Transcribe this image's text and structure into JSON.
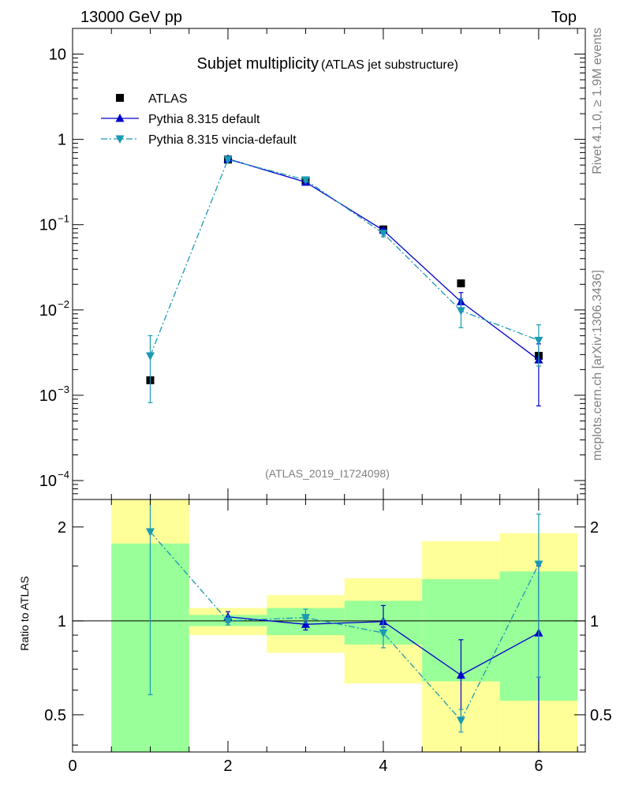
{
  "header": {
    "left": "13000 GeV pp",
    "right": "Top"
  },
  "title": {
    "main": "Subjet multiplicity",
    "sub": "(ATLAS jet substructure)"
  },
  "side_labels": {
    "rivet": "Rivet 4.1.0, ≥ 1.9M events",
    "mcplots": "mcplots.cern.ch [arXiv:1306.3436]"
  },
  "analysis_id": "(ATLAS_2019_I1724098)",
  "colors": {
    "data": "#000000",
    "default": "#0000cc",
    "vincia": "#1a99b3",
    "band_green": "#99ff99",
    "band_yellow": "#ffff99"
  },
  "chart_data": [
    {
      "type": "line",
      "name": "main",
      "title": "Subjet multiplicity",
      "yscale": "log",
      "xlim": [
        0,
        6.6
      ],
      "ylim": [
        6e-05,
        20
      ],
      "y_ticks": [
        {
          "value": 10,
          "label": "10"
        },
        {
          "value": 1,
          "label": "1"
        },
        {
          "value": 0.1,
          "label": "10",
          "exp": "−1"
        },
        {
          "value": 0.01,
          "label": "10",
          "exp": "−2"
        },
        {
          "value": 0.001,
          "label": "10",
          "exp": "−3"
        },
        {
          "value": 0.0001,
          "label": "10",
          "exp": "−4"
        }
      ],
      "legend": {
        "position": "top-left",
        "entries": [
          {
            "key": "data",
            "label": "ATLAS"
          },
          {
            "key": "default",
            "label": "Pythia 8.315 default"
          },
          {
            "key": "vincia",
            "label": "Pythia 8.315 vincia-default"
          }
        ]
      },
      "series": [
        {
          "key": "data",
          "name": "ATLAS",
          "marker": "square",
          "x": [
            1,
            2,
            3,
            4,
            5,
            6
          ],
          "y": [
            0.0015,
            0.58,
            0.33,
            0.088,
            0.0205,
            0.0029
          ]
        },
        {
          "key": "default",
          "name": "Pythia 8.315 default",
          "marker": "triangle-up",
          "x": [
            1,
            2,
            3,
            4,
            5,
            6
          ],
          "y": [
            null,
            0.59,
            0.315,
            0.086,
            0.0125,
            0.0026
          ],
          "err_lo": [
            null,
            0.57,
            0.305,
            0.082,
            0.01,
            0.00075
          ],
          "err_hi": [
            null,
            0.61,
            0.325,
            0.09,
            0.016,
            0.004
          ]
        },
        {
          "key": "vincia",
          "name": "Pythia 8.315 vincia-default",
          "marker": "triangle-down",
          "x": [
            1,
            2,
            3,
            4,
            5,
            6
          ],
          "y": [
            0.0029,
            0.58,
            0.335,
            0.079,
            0.0098,
            0.0044
          ],
          "err_lo": [
            0.00082,
            0.56,
            0.32,
            0.072,
            0.0062,
            0.0022
          ],
          "err_hi": [
            0.005,
            0.6,
            0.35,
            0.086,
            0.0135,
            0.0067
          ]
        }
      ]
    },
    {
      "type": "line",
      "name": "ratio",
      "ylabel": "Ratio to ATLAS",
      "yscale": "log",
      "xlim": [
        0,
        6.6
      ],
      "ylim": [
        0.38,
        2.45
      ],
      "x_ticks": [
        0,
        2,
        4,
        6
      ],
      "y_ticks": [
        {
          "value": 0.5,
          "label": "0.5"
        },
        {
          "value": 1,
          "label": "1"
        },
        {
          "value": 2,
          "label": "2"
        }
      ],
      "bands": [
        {
          "x0": 0.5,
          "x1": 1.5,
          "green": [
            0.3,
            1.77
          ],
          "yellow": [
            0.3,
            2.6
          ]
        },
        {
          "x0": 1.5,
          "x1": 2.5,
          "green": [
            0.962,
            1.045
          ],
          "yellow": [
            0.9,
            1.1
          ]
        },
        {
          "x0": 2.5,
          "x1": 3.5,
          "green": [
            0.9,
            1.1
          ],
          "yellow": [
            0.79,
            1.21
          ]
        },
        {
          "x0": 3.5,
          "x1": 4.5,
          "green": [
            0.84,
            1.16
          ],
          "yellow": [
            0.63,
            1.37
          ]
        },
        {
          "x0": 4.5,
          "x1": 5.5,
          "green": [
            0.64,
            1.36
          ],
          "yellow": [
            0.3,
            1.8
          ]
        },
        {
          "x0": 5.5,
          "x1": 6.5,
          "green": [
            0.555,
            1.44
          ],
          "yellow": [
            0.3,
            1.91
          ]
        }
      ],
      "series": [
        {
          "key": "default",
          "marker": "triangle-up",
          "x": [
            2,
            3,
            4,
            5,
            6
          ],
          "y": [
            1.03,
            0.975,
            0.995,
            0.67,
            0.915
          ],
          "err_lo": [
            0.99,
            0.935,
            0.955,
            0.49,
            0.26
          ],
          "err_hi": [
            1.07,
            1.015,
            1.12,
            0.87,
            1.5
          ]
        },
        {
          "key": "vincia",
          "marker": "triangle-down",
          "x": [
            1,
            2,
            3,
            4,
            5,
            6
          ],
          "y": [
            1.93,
            1.0,
            1.025,
            0.915,
            0.48,
            1.52
          ],
          "err_lo": [
            0.58,
            0.97,
            0.985,
            0.82,
            0.44,
            0.66
          ],
          "err_hi": [
            2.6,
            1.04,
            1.09,
            1.01,
            0.52,
            2.2
          ]
        }
      ]
    }
  ]
}
